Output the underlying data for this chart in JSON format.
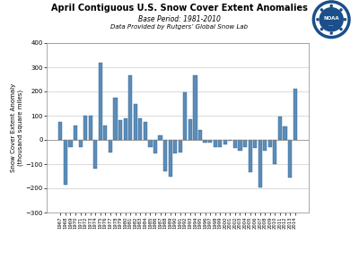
{
  "title": "April Contiguous U.S. Snow Cover Extent Anomalies",
  "subtitle1": "Base Period: 1981-2010",
  "subtitle2": "Data Provided by Rutgers’ Global Snow Lab",
  "ylabel": "Snow Cover Extent Anomaly\n(thousand square miles)",
  "ylim": [
    -300,
    400
  ],
  "yticks": [
    -300,
    -200,
    -100,
    0,
    100,
    200,
    300,
    400
  ],
  "bar_color": "#5b8db8",
  "bar_color_dark": "#2e6096",
  "bg_color": "#ffffff",
  "years": [
    1967,
    1968,
    1969,
    1970,
    1971,
    1972,
    1973,
    1974,
    1975,
    1976,
    1977,
    1978,
    1979,
    1980,
    1981,
    1982,
    1983,
    1984,
    1985,
    1986,
    1987,
    1988,
    1989,
    1990,
    1991,
    1992,
    1993,
    1994,
    1995,
    1996,
    1997,
    1998,
    1999,
    2000,
    2001,
    2002,
    2003,
    2004,
    2005,
    2006,
    2007,
    2008,
    2009,
    2010,
    2011,
    2012,
    2013,
    2014
  ],
  "values": [
    75,
    -185,
    -30,
    60,
    -30,
    100,
    100,
    -120,
    320,
    60,
    -50,
    175,
    80,
    90,
    265,
    150,
    90,
    75,
    -30,
    -55,
    20,
    -130,
    -150,
    -55,
    -50,
    195,
    85,
    265,
    40,
    -10,
    -10,
    -30,
    -30,
    -20,
    -5,
    -35,
    -45,
    -30,
    -135,
    -35,
    -195,
    -45,
    -30,
    -100,
    95,
    55,
    -155,
    210
  ]
}
